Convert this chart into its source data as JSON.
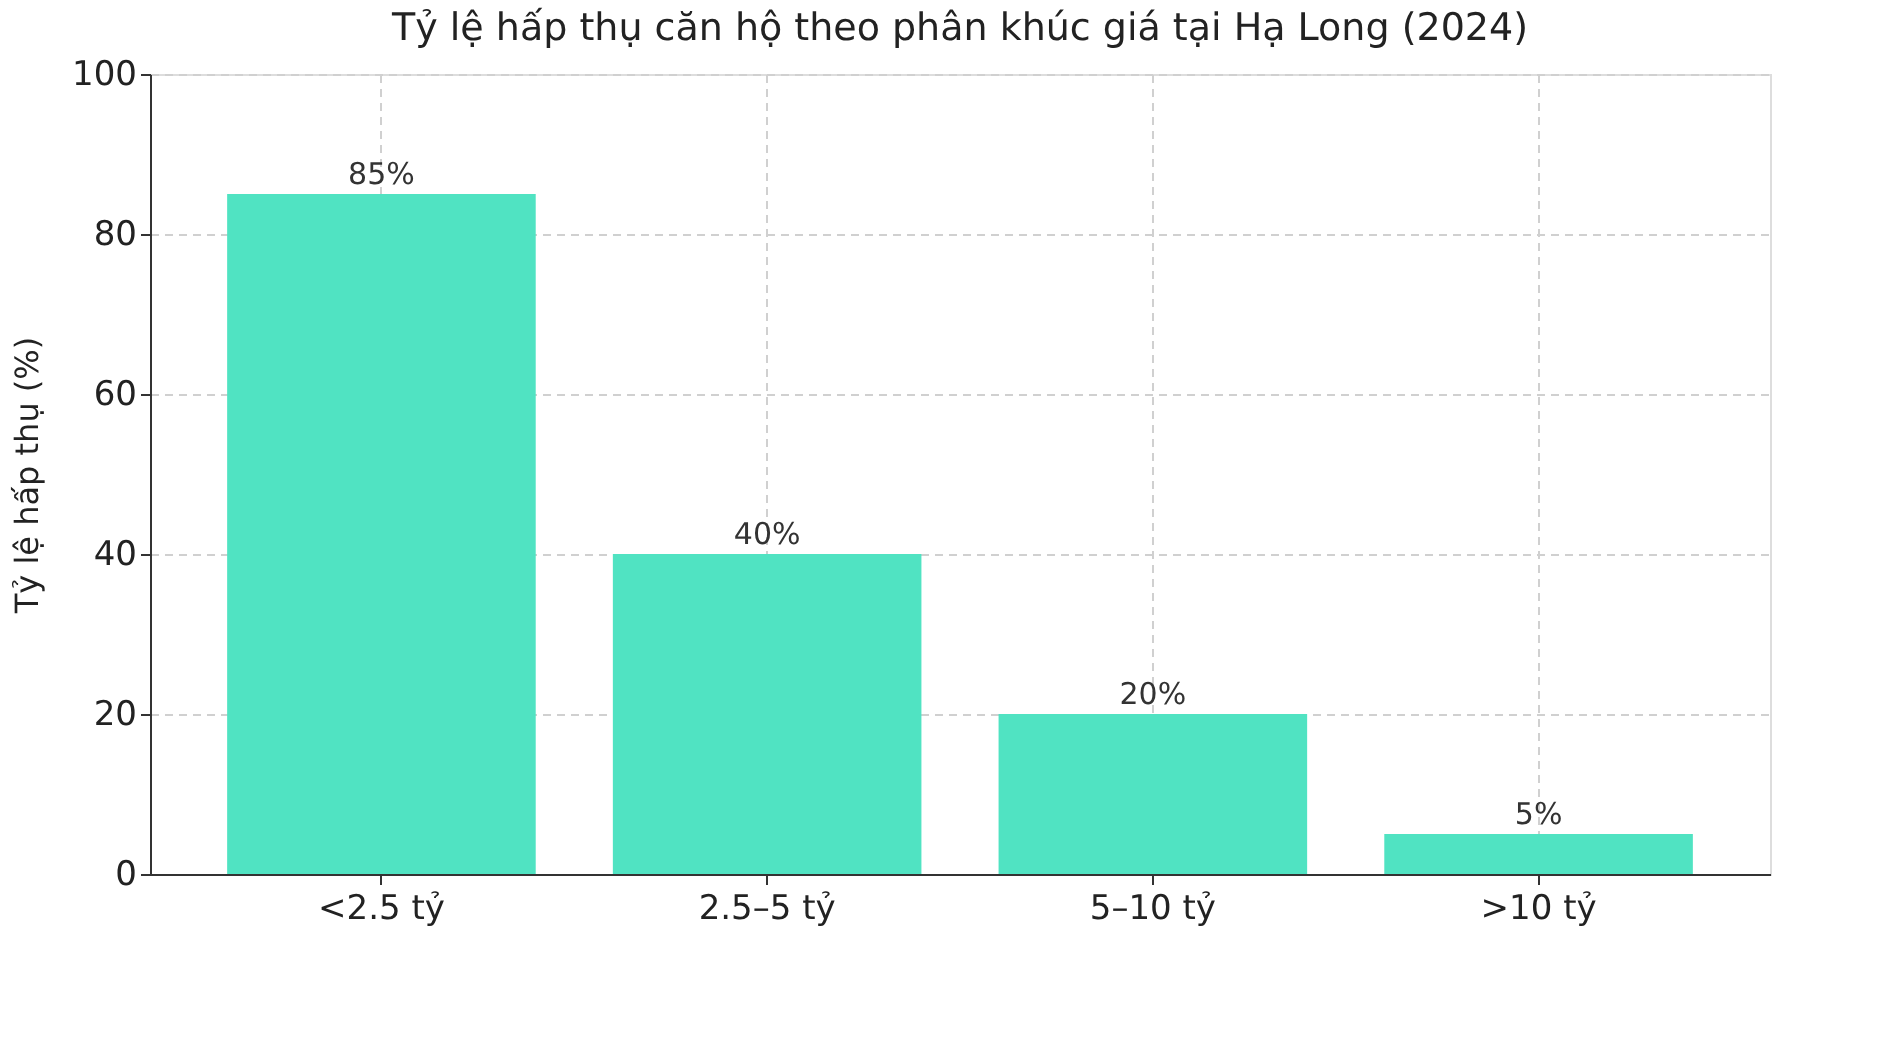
{
  "chart_data": {
    "type": "bar",
    "title": "Tỷ lệ hấp thụ căn hộ theo phân khúc giá tại Hạ Long (2024)",
    "ylabel": "Tỷ lệ hấp thụ (%)",
    "categories": [
      "<2.5 tỷ",
      "2.5–5 tỷ",
      "5–10 tỷ",
      ">10 tỷ"
    ],
    "values": [
      85,
      40,
      20,
      5
    ],
    "value_labels": [
      "85%",
      "40%",
      "20%",
      "5%"
    ],
    "color": "#50e3c2",
    "ylim": [
      0,
      100
    ],
    "yticks": [
      0,
      20,
      40,
      60,
      80,
      100
    ],
    "grid": true
  }
}
